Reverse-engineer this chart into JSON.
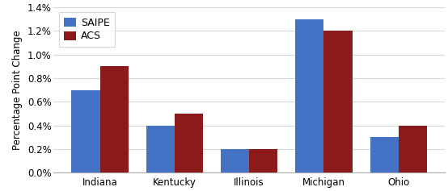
{
  "categories": [
    "Indiana",
    "Kentucky",
    "Illinois",
    "Michigan",
    "Ohio"
  ],
  "saipe": [
    0.007,
    0.004,
    0.002,
    0.013,
    0.003
  ],
  "acs": [
    0.009,
    0.005,
    0.002,
    0.012,
    0.004
  ],
  "saipe_color": "#4472C4",
  "acs_color": "#8B1A1A",
  "ylabel": "Percentage Point Change",
  "ylim": [
    0,
    0.014
  ],
  "yticks": [
    0.0,
    0.002,
    0.004,
    0.006,
    0.008,
    0.01,
    0.012,
    0.014
  ],
  "ytick_labels": [
    "0.0%",
    "0.2%",
    "0.4%",
    "0.6%",
    "0.8%",
    "1.0%",
    "1.2%",
    "1.4%"
  ],
  "legend_labels": [
    "SAIPE",
    "ACS"
  ],
  "bar_width": 0.38,
  "background_color": "#ffffff",
  "grid_color": "#d8d8d8",
  "ylabel_fontsize": 8.5,
  "tick_fontsize": 8.5,
  "legend_fontsize": 9
}
